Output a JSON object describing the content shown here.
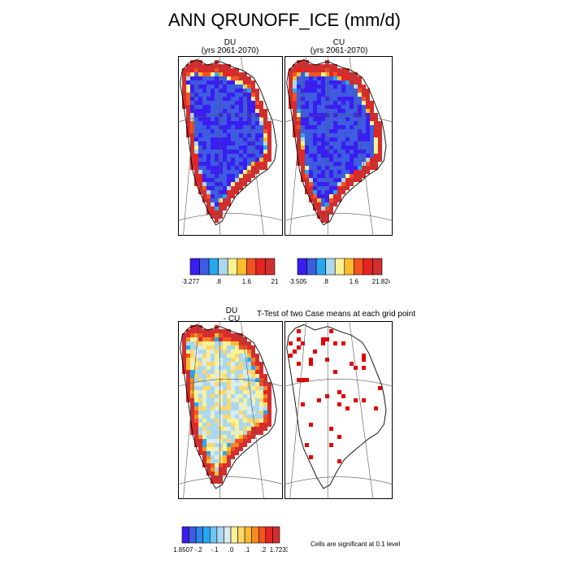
{
  "figure": {
    "title": "ANN QRUNOFF_ICE (mm/d)",
    "panels": [
      {
        "case": "DU",
        "years": "(yrs 2061-2070)"
      },
      {
        "case": "CU",
        "years": "(yrs 2061-2070)"
      }
    ],
    "diff_label": {
      "line1": "DU",
      "line2": "- CU"
    },
    "ttest_title": "T-Test of two Case means at each grid point",
    "significance_note": "Cells are significant at 0.1 level"
  },
  "chart_data": [
    {
      "type": "heatmap",
      "name": "DU",
      "colorbar": {
        "colors": [
          "#3a1df0",
          "#3d5ce0",
          "#27a7f0",
          "#abd8ee",
          "#fbf195",
          "#fdbb2d",
          "#f4531f",
          "#e52421",
          "#d12f2f"
        ],
        "tick_labels": [
          "-3.277",
          ".8",
          "1.6",
          "21"
        ]
      }
    },
    {
      "type": "heatmap",
      "name": "CU",
      "colorbar": {
        "colors": [
          "#3a1df0",
          "#3d5ce0",
          "#27a7f0",
          "#abd8ee",
          "#fbf195",
          "#fdbb2d",
          "#f4531f",
          "#e52421",
          "#d12f2f"
        ],
        "tick_labels": [
          "-3.505",
          ".8",
          "1.6",
          "21.824"
        ]
      }
    },
    {
      "type": "heatmap",
      "name": "DU - CU",
      "colorbar": {
        "colors": [
          "#3a1df0",
          "#3d5ce0",
          "#2f84e8",
          "#27a7f0",
          "#6ec4f3",
          "#abd8ee",
          "#d8ecf2",
          "#fbf195",
          "#fdd76a",
          "#fdbb2d",
          "#f88a24",
          "#f4531f",
          "#e52421",
          "#d12f2f"
        ],
        "tick_labels": [
          "-1.8507",
          "-.2",
          "-.1",
          ".0",
          ".1",
          ".2",
          "1.7233"
        ]
      }
    },
    {
      "type": "heatmap",
      "name": "T-Test",
      "colorbar": null
    }
  ]
}
